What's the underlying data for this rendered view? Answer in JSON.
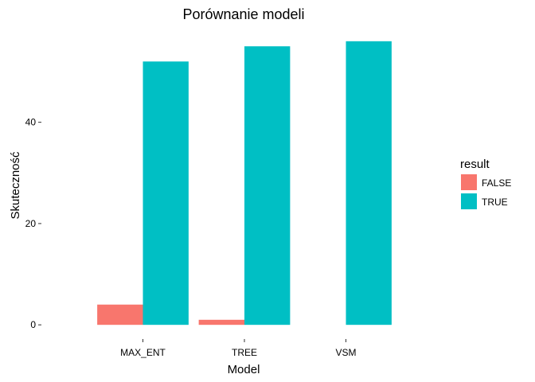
{
  "chart_data": {
    "type": "bar",
    "title": "Porównanie modeli",
    "xlabel": "Model",
    "ylabel": "Skuteczność",
    "categories": [
      "MAX_ENT",
      "TREE",
      "VSM"
    ],
    "series": [
      {
        "name": "FALSE",
        "values": [
          4,
          1,
          0
        ],
        "color": "#F8766D"
      },
      {
        "name": "TRUE",
        "values": [
          52,
          55,
          56
        ],
        "color": "#00BFC4"
      }
    ],
    "yticks": [
      0,
      20,
      40
    ],
    "ylim": [
      -2.8,
      58.8
    ],
    "grid": false,
    "legend": {
      "title": "result",
      "position": "right"
    }
  }
}
